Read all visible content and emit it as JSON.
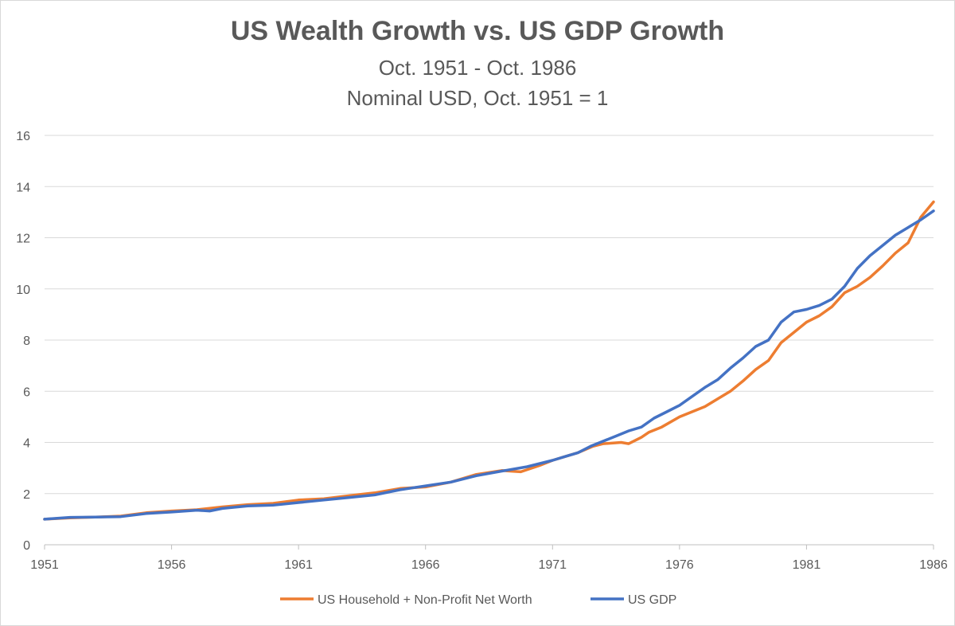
{
  "chart_data": {
    "type": "line",
    "title": "US Wealth Growth vs. US GDP Growth",
    "subtitle_lines": [
      "Oct. 1951 - Oct. 1986",
      "Nominal USD, Oct. 1951 = 1"
    ],
    "xlabel": "",
    "ylabel": "",
    "xlim": [
      1951,
      1986
    ],
    "ylim": [
      0,
      16
    ],
    "x_ticks": [
      "1951",
      "1956",
      "1961",
      "1966",
      "1971",
      "1976",
      "1981",
      "1986"
    ],
    "y_ticks": [
      "0",
      "2",
      "4",
      "6",
      "8",
      "10",
      "12",
      "14",
      "16"
    ],
    "grid": "horizontal",
    "legend_position": "bottom",
    "series": [
      {
        "name": "US Household + Non-Profit Net Worth",
        "color": "#ED7D31",
        "points": [
          [
            1951,
            1.0
          ],
          [
            1952,
            1.05
          ],
          [
            1953,
            1.08
          ],
          [
            1954,
            1.12
          ],
          [
            1955,
            1.25
          ],
          [
            1956,
            1.32
          ],
          [
            1957,
            1.37
          ],
          [
            1958,
            1.48
          ],
          [
            1959,
            1.57
          ],
          [
            1960,
            1.62
          ],
          [
            1961,
            1.75
          ],
          [
            1962,
            1.8
          ],
          [
            1963,
            1.92
          ],
          [
            1964,
            2.03
          ],
          [
            1965,
            2.2
          ],
          [
            1966,
            2.26
          ],
          [
            1967,
            2.45
          ],
          [
            1968,
            2.75
          ],
          [
            1969,
            2.9
          ],
          [
            1969.75,
            2.85
          ],
          [
            1970.5,
            3.1
          ],
          [
            1971,
            3.3
          ],
          [
            1971.5,
            3.45
          ],
          [
            1972,
            3.6
          ],
          [
            1972.6,
            3.85
          ],
          [
            1973,
            3.95
          ],
          [
            1973.7,
            4.0
          ],
          [
            1974,
            3.95
          ],
          [
            1974.5,
            4.2
          ],
          [
            1974.8,
            4.4
          ],
          [
            1975.3,
            4.6
          ],
          [
            1976,
            5.0
          ],
          [
            1977,
            5.4
          ],
          [
            1977.5,
            5.7
          ],
          [
            1978,
            6.0
          ],
          [
            1978.5,
            6.4
          ],
          [
            1979,
            6.85
          ],
          [
            1979.5,
            7.2
          ],
          [
            1980,
            7.9
          ],
          [
            1980.5,
            8.3
          ],
          [
            1981,
            8.7
          ],
          [
            1981.5,
            8.95
          ],
          [
            1982,
            9.3
          ],
          [
            1982.5,
            9.85
          ],
          [
            1983,
            10.1
          ],
          [
            1983.5,
            10.45
          ],
          [
            1984,
            10.9
          ],
          [
            1984.5,
            11.4
          ],
          [
            1985,
            11.8
          ],
          [
            1985.5,
            12.8
          ],
          [
            1986,
            13.4
          ]
        ]
      },
      {
        "name": "US GDP",
        "color": "#4472C4",
        "points": [
          [
            1951,
            1.0
          ],
          [
            1952,
            1.07
          ],
          [
            1953,
            1.08
          ],
          [
            1954,
            1.1
          ],
          [
            1955,
            1.22
          ],
          [
            1956,
            1.28
          ],
          [
            1957,
            1.35
          ],
          [
            1957.5,
            1.32
          ],
          [
            1958,
            1.42
          ],
          [
            1959,
            1.52
          ],
          [
            1960,
            1.55
          ],
          [
            1961,
            1.65
          ],
          [
            1962,
            1.75
          ],
          [
            1963,
            1.85
          ],
          [
            1964,
            1.95
          ],
          [
            1965,
            2.15
          ],
          [
            1966,
            2.3
          ],
          [
            1967,
            2.45
          ],
          [
            1968,
            2.7
          ],
          [
            1969,
            2.88
          ],
          [
            1970,
            3.05
          ],
          [
            1971,
            3.3
          ],
          [
            1971.5,
            3.45
          ],
          [
            1972,
            3.6
          ],
          [
            1972.5,
            3.85
          ],
          [
            1973,
            4.05
          ],
          [
            1973.5,
            4.25
          ],
          [
            1974,
            4.45
          ],
          [
            1974.5,
            4.6
          ],
          [
            1975,
            4.95
          ],
          [
            1975.5,
            5.2
          ],
          [
            1976,
            5.45
          ],
          [
            1976.5,
            5.8
          ],
          [
            1977,
            6.15
          ],
          [
            1977.5,
            6.45
          ],
          [
            1978,
            6.9
          ],
          [
            1978.5,
            7.3
          ],
          [
            1979,
            7.75
          ],
          [
            1979.5,
            8.0
          ],
          [
            1980,
            8.7
          ],
          [
            1980.5,
            9.1
          ],
          [
            1981,
            9.2
          ],
          [
            1981.5,
            9.35
          ],
          [
            1982,
            9.6
          ],
          [
            1982.5,
            10.1
          ],
          [
            1983,
            10.8
          ],
          [
            1983.5,
            11.3
          ],
          [
            1984,
            11.7
          ],
          [
            1984.5,
            12.1
          ],
          [
            1985,
            12.4
          ],
          [
            1985.5,
            12.7
          ],
          [
            1986,
            13.05
          ]
        ]
      }
    ]
  }
}
